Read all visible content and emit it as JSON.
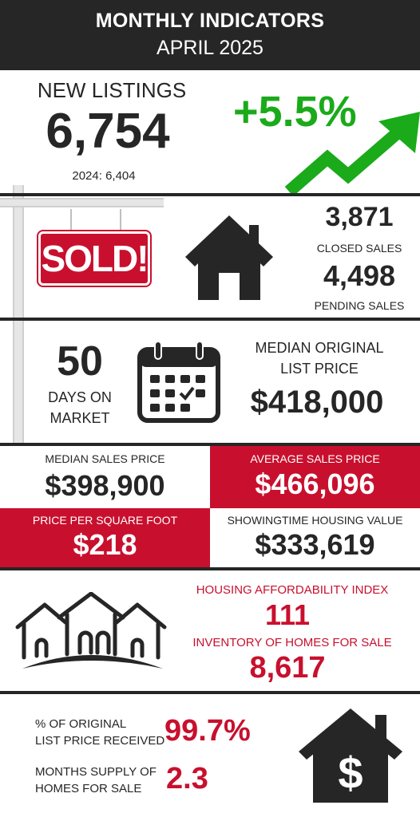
{
  "header": {
    "title": "MONTHLY INDICATORS",
    "subtitle": "APRIL 2025"
  },
  "new_listings": {
    "label": "NEW LISTINGS",
    "value": "6,754",
    "prior": "2024: 6,404",
    "change": "+5.5%"
  },
  "sales": {
    "sign_text": "SOLD!",
    "closed_value": "3,871",
    "closed_label": "CLOSED SALES",
    "pending_value": "4,498",
    "pending_label": "PENDING SALES"
  },
  "market_time": {
    "days_value": "50",
    "days_label_1": "DAYS ON",
    "days_label_2": "MARKET",
    "median_list_label_1": "MEDIAN ORIGINAL",
    "median_list_label_2": "LIST PRICE",
    "median_list_value": "$418,000"
  },
  "prices": {
    "median_sales_label": "MEDIAN SALES PRICE",
    "median_sales_value": "$398,900",
    "average_sales_label": "AVERAGE SALES PRICE",
    "average_sales_value": "$466,096",
    "ppsf_label": "PRICE PER SQUARE FOOT",
    "ppsf_value": "$218",
    "showingtime_label": "SHOWINGTIME HOUSING VALUE",
    "showingtime_value": "$333,619"
  },
  "affordability": {
    "index_label": "HOUSING AFFORDABILITY INDEX",
    "index_value": "111",
    "inventory_label": "INVENTORY OF HOMES FOR SALE",
    "inventory_value": "8,617"
  },
  "supply": {
    "pct_label_1": "% OF ORIGINAL",
    "pct_label_2": "LIST PRICE RECEIVED",
    "pct_value": "99.7%",
    "months_label_1": "MONTHS SUPPLY OF",
    "months_label_2": "HOMES FOR SALE",
    "months_value": "2.3"
  },
  "colors": {
    "accent_red": "#c8102e",
    "accent_green": "#1aaa1a",
    "dark": "#262626"
  },
  "icons": [
    "trend-arrow-icon",
    "sold-sign-icon",
    "house-icon",
    "calendar-icon",
    "houses-row-icon",
    "house-dollar-icon"
  ]
}
